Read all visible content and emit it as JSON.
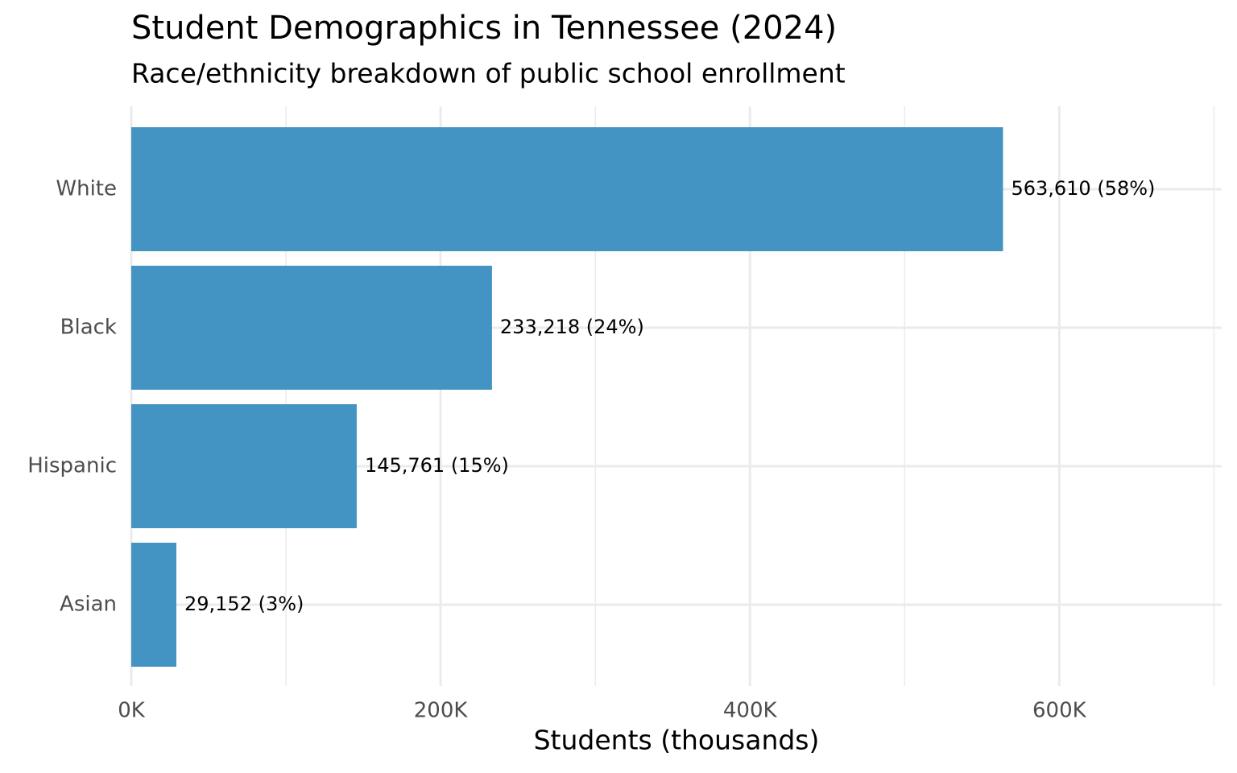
{
  "chart_data": {
    "type": "bar",
    "orientation": "horizontal",
    "title": "Student Demographics in Tennessee (2024)",
    "subtitle": "Race/ethnicity breakdown of public school enrollment",
    "x_label": "Students (thousands)",
    "categories": [
      "White",
      "Black",
      "Hispanic",
      "Asian"
    ],
    "values": [
      563610,
      233218,
      145761,
      29152
    ],
    "value_labels": [
      "563,610 (58%)",
      "233,218 (24%)",
      "145,761 (15%)",
      "29,152 (3%)"
    ],
    "color": "#4393c3",
    "xlim": [
      0,
      705000
    ],
    "xticks": [
      {
        "value": 0,
        "label": "0K"
      },
      {
        "value": 200000,
        "label": "200K"
      },
      {
        "value": 400000,
        "label": "400K"
      },
      {
        "value": 600000,
        "label": "600K"
      }
    ],
    "minor_xticks": [
      100000,
      300000,
      500000,
      700000
    ],
    "grid": true
  }
}
